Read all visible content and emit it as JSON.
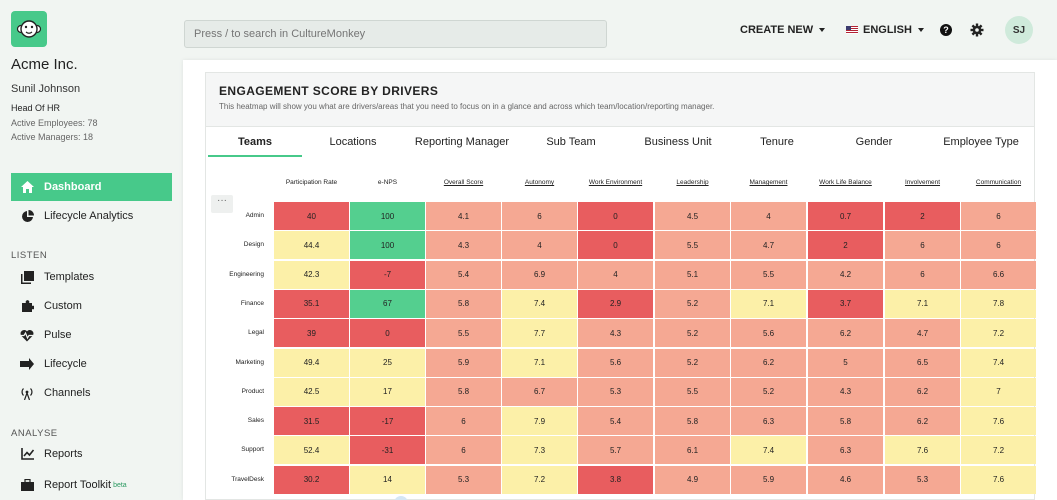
{
  "company": "Acme Inc.",
  "user": {
    "name": "Sunil Johnson",
    "role": "Head Of HR",
    "active_employees": "Active Employees: 78",
    "active_managers": "Active Managers: 18",
    "initials": "SJ"
  },
  "nav": {
    "dashboard": "Dashboard",
    "lifecycle_analytics": "Lifecycle Analytics",
    "listen_label": "LISTEN",
    "templates": "Templates",
    "custom": "Custom",
    "pulse": "Pulse",
    "lifecycle": "Lifecycle",
    "channels": "Channels",
    "analyse_label": "ANALYSE",
    "reports": "Reports",
    "report_toolkit": "Report Toolkit",
    "beta": "beta"
  },
  "topbar": {
    "search_placeholder": "Press / to search in CultureMonkey",
    "create_new": "CREATE NEW",
    "language": "ENGLISH",
    "help": "?"
  },
  "card": {
    "title": "ENGAGEMENT SCORE BY DRIVERS",
    "subtitle": "This heatmap will show you what are drivers/areas that you need to focus on in a glance and across which team/location/reporting manager.",
    "tabs": [
      "Teams",
      "Locations",
      "Reporting Manager",
      "Sub Team",
      "Business Unit",
      "Tenure",
      "Gender",
      "Employee Type"
    ],
    "active_tab": 0,
    "more": "···"
  },
  "heatmap": {
    "columns": [
      "Participation Rate",
      "e-NPS",
      "Overall Score",
      "Autonomy",
      "Work Environment",
      "Leadership",
      "Management",
      "Work Life Balance",
      "Involvement",
      "Communication"
    ],
    "rows": [
      {
        "label": "Admin",
        "values": [
          "40",
          "100",
          "4.1",
          "6",
          "0",
          "4.5",
          "4",
          "0.7",
          "2",
          "6"
        ]
      },
      {
        "label": "Design",
        "values": [
          "44.4",
          "100",
          "4.3",
          "4",
          "0",
          "5.5",
          "4.7",
          "2",
          "6",
          "6"
        ]
      },
      {
        "label": "Engineering",
        "values": [
          "42.3",
          "-7",
          "5.4",
          "6.9",
          "4",
          "5.1",
          "5.5",
          "4.2",
          "6",
          "6.6"
        ]
      },
      {
        "label": "Finance",
        "values": [
          "35.1",
          "67",
          "5.8",
          "7.4",
          "2.9",
          "5.2",
          "7.1",
          "3.7",
          "7.1",
          "7.8"
        ]
      },
      {
        "label": "Legal",
        "values": [
          "39",
          "0",
          "5.5",
          "7.7",
          "4.3",
          "5.2",
          "5.6",
          "6.2",
          "4.7",
          "7.2"
        ]
      },
      {
        "label": "Marketing",
        "values": [
          "49.4",
          "25",
          "5.9",
          "7.1",
          "5.6",
          "5.2",
          "6.2",
          "5",
          "6.5",
          "7.4"
        ]
      },
      {
        "label": "Product",
        "values": [
          "42.5",
          "17",
          "5.8",
          "6.7",
          "5.3",
          "5.5",
          "5.2",
          "4.3",
          "6.2",
          "7"
        ]
      },
      {
        "label": "Sales",
        "values": [
          "31.5",
          "-17",
          "6",
          "7.9",
          "5.4",
          "5.8",
          "6.3",
          "5.8",
          "6.2",
          "7.6"
        ]
      },
      {
        "label": "Support",
        "values": [
          "52.4",
          "-31",
          "6",
          "7.3",
          "5.7",
          "6.1",
          "7.4",
          "6.3",
          "7.6",
          "7.2"
        ]
      },
      {
        "label": "TravelDesk",
        "values": [
          "30.2",
          "14",
          "5.3",
          "7.2",
          "3.8",
          "4.9",
          "5.9",
          "4.6",
          "5.3",
          "7.6"
        ]
      }
    ],
    "colors": {
      "red": "#e85d5f",
      "salmon": "#f5a893",
      "yellow": "#fcf0a8",
      "green": "#54cf8f"
    }
  },
  "colors": {
    "accent": "#47c98a"
  }
}
